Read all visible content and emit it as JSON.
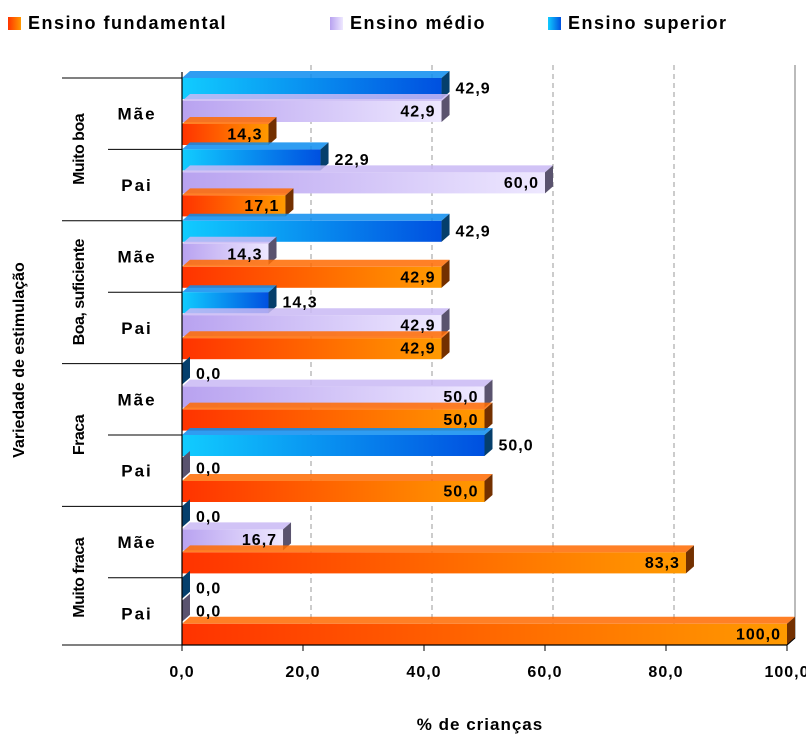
{
  "chart_data": {
    "type": "bar",
    "orientation": "horizontal",
    "xlabel": "% de crianças",
    "ylabel": "Variedade de estimulação",
    "xlim": [
      0,
      100
    ],
    "xticks": [
      "0,0",
      "20,0",
      "40,0",
      "60,0",
      "80,0",
      "100,0"
    ],
    "grid": true,
    "legend_position": "top",
    "groups": [
      {
        "label": "Muito boa",
        "rows": [
          "Mãe",
          "Pai"
        ]
      },
      {
        "label": "Boa, suficiente",
        "rows": [
          "Mãe",
          "Pai"
        ]
      },
      {
        "label": "Fraca",
        "rows": [
          "Mãe",
          "Pai"
        ]
      },
      {
        "label": "Muito fraca",
        "rows": [
          "Mãe",
          "Pai"
        ]
      }
    ],
    "series": [
      {
        "name": "Ensino fundamental",
        "color": "#FF6A00",
        "values": [
          14.3,
          17.1,
          42.9,
          42.9,
          50.0,
          50.0,
          83.3,
          100.0
        ],
        "labels": [
          "14,3",
          "17,1",
          "42,9",
          "42,9",
          "50,0",
          "50,0",
          "83,3",
          "100,0"
        ]
      },
      {
        "name": "Ensino médio",
        "color": "#C9B8F5",
        "values": [
          42.9,
          60.0,
          14.3,
          42.9,
          50.0,
          0.0,
          16.7,
          0.0
        ],
        "labels": [
          "42,9",
          "60,0",
          "14,3",
          "42,9",
          "50,0",
          "0,0",
          "16,7",
          "0,0"
        ]
      },
      {
        "name": "Ensino superior",
        "color": "#0A8CF0",
        "values": [
          42.9,
          22.9,
          42.9,
          14.3,
          0.0,
          50.0,
          0.0,
          0.0
        ],
        "labels": [
          "42,9",
          "22,9",
          "42,9",
          "14,3",
          "0,0",
          "50,0",
          "0,0",
          "0,0"
        ]
      }
    ]
  }
}
